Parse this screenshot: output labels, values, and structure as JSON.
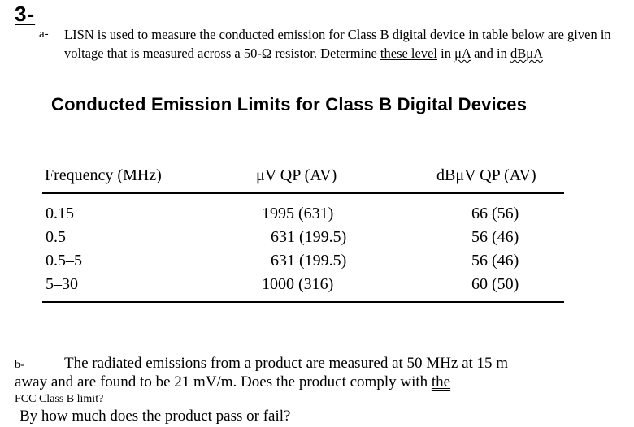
{
  "question_number": "3-",
  "part_a": {
    "marker": "a-",
    "line1": "LISN is used to measure the conducted emission for Class B digital device in table below are given in",
    "line2_prefix": "voltage that is measured across a 50-Ω resistor. Determine ",
    "line2_underlined": "these level",
    "line2_in1": " in ",
    "unit_ua": "μA",
    "line2_and": " and in ",
    "unit_dbua": "dBμA"
  },
  "table": {
    "title": "Conducted Emission Limits for Class B Digital Devices",
    "headers": [
      "Frequency (MHz)",
      "μV QP (AV)",
      "dBμV QP (AV)"
    ],
    "rows": [
      [
        "0.15",
        "1995 (631)",
        "66 (56)"
      ],
      [
        "0.5",
        "631 (199.5)",
        "56 (46)"
      ],
      [
        "0.5–5",
        "631 (199.5)",
        "56 (46)"
      ],
      [
        "5–30",
        "1000 (316)",
        "60 (50)"
      ]
    ]
  },
  "part_b": {
    "marker": "b-",
    "line1": "The radiated emissions from a product are measured at 50 MHz at 15 m",
    "line2_prefix": "away and are found to be 21 mV/m. Does the product comply with ",
    "line2_underlined": "the",
    "line3": "FCC Class B limit?",
    "line4": "By how much does the product pass or fail?"
  }
}
